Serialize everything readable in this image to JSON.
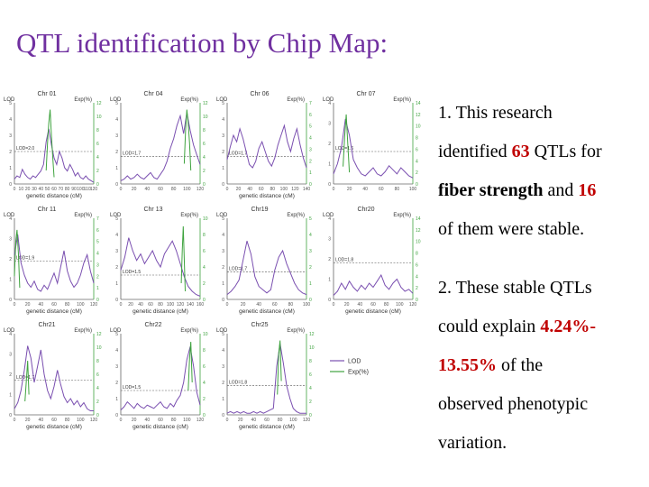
{
  "slide": {
    "title": "QTL identification by Chip Map:",
    "points": [
      {
        "lines": [
          [
            "1. This research"
          ],
          [
            "identified ",
            {
              "t": "63",
              "s": "num"
            },
            " QTLs for"
          ],
          [
            {
              "t": "fiber strength",
              "s": "bold"
            },
            " and  ",
            {
              "t": "16",
              "s": "num"
            }
          ],
          [
            "of them were  stable."
          ]
        ]
      },
      {
        "lines": [
          [
            " 2. These stable QTLs"
          ],
          [
            "could explain ",
            {
              "t": "4.24%-",
              "s": "num"
            }
          ],
          [
            {
              "t": "13.55%",
              "s": "num"
            },
            " of the"
          ],
          [
            "observed phenotypic"
          ],
          [
            "variation."
          ]
        ]
      }
    ]
  },
  "colors": {
    "title": "#7030a0",
    "accent": "#c00000",
    "lod_line": "#7a4fb0",
    "exp_line": "#3fa33f",
    "threshold": "#555555"
  },
  "legend": {
    "lod": "LOD",
    "exp": "Exp(%)"
  },
  "chart_data": [
    {
      "type": "line",
      "title": "Chr 01",
      "xlabel": "genetic distance (cM)",
      "left_label": "LOD",
      "right_label": "Exp(%)",
      "threshold_label": "LOD=2.0",
      "threshold": 2.0,
      "x_ticks": [
        "0",
        "10",
        "20",
        "30",
        "40",
        "50",
        "60",
        "70",
        "80",
        "90",
        "100",
        "110",
        "120"
      ],
      "y_ticks_left": [
        "0",
        "1",
        "2",
        "3",
        "4",
        "5"
      ],
      "y_ticks_right": [
        "0",
        "2",
        "4",
        "6",
        "8",
        "10",
        "12"
      ],
      "ylim_left": [
        0,
        5
      ],
      "ylim_right": [
        0,
        12
      ],
      "xlim": [
        0,
        120
      ],
      "lod": {
        "x": [
          0,
          4,
          8,
          12,
          16,
          20,
          24,
          28,
          32,
          36,
          40,
          44,
          48,
          52,
          56,
          60,
          64,
          68,
          72,
          76,
          80,
          84,
          88,
          92,
          96,
          100,
          104,
          108,
          112,
          116,
          120
        ],
        "y": [
          0.3,
          0.5,
          0.4,
          0.9,
          0.6,
          0.4,
          0.3,
          0.5,
          0.4,
          0.6,
          0.8,
          1.2,
          2.6,
          3.4,
          2.4,
          1.6,
          1.2,
          2.0,
          1.6,
          1.0,
          0.8,
          1.2,
          0.9,
          0.5,
          0.7,
          0.4,
          0.3,
          0.5,
          0.3,
          0.2,
          0.1
        ]
      },
      "exp": {
        "x": [
          48,
          50,
          52,
          54,
          56,
          58,
          60
        ],
        "y": [
          2,
          6,
          9,
          11,
          7,
          4,
          1
        ]
      }
    },
    {
      "type": "line",
      "title": "Chr 04",
      "xlabel": "",
      "left_label": "LOD",
      "right_label": "Exp(%)",
      "threshold_label": "LOD=1.7",
      "threshold": 1.7,
      "x_ticks": [
        "0",
        "20",
        "40",
        "60",
        "80",
        "100",
        "120"
      ],
      "y_ticks_left": [
        "0",
        "1",
        "2",
        "3",
        "4",
        "5"
      ],
      "y_ticks_right": [
        "0",
        "2",
        "4",
        "6",
        "8",
        "10",
        "12"
      ],
      "ylim_left": [
        0,
        5
      ],
      "ylim_right": [
        0,
        12
      ],
      "xlim": [
        0,
        120
      ],
      "lod": {
        "x": [
          0,
          5,
          10,
          15,
          20,
          25,
          30,
          35,
          40,
          45,
          50,
          55,
          60,
          65,
          70,
          75,
          80,
          85,
          90,
          95,
          100,
          105,
          110,
          115,
          120
        ],
        "y": [
          0.2,
          0.3,
          0.5,
          0.3,
          0.4,
          0.6,
          0.4,
          0.3,
          0.5,
          0.7,
          0.4,
          0.3,
          0.6,
          0.9,
          1.4,
          2.2,
          2.8,
          3.6,
          4.2,
          3.1,
          4.4,
          3.3,
          2.4,
          1.8,
          1.2
        ]
      },
      "exp": {
        "x": [
          96,
          98,
          100,
          102,
          104,
          106
        ],
        "y": [
          3,
          8,
          11,
          9,
          6,
          2
        ]
      }
    },
    {
      "type": "line",
      "title": "Chr 06",
      "xlabel": "genetic distance (cM)",
      "left_label": "LOD",
      "right_label": "Exp(%)",
      "threshold_label": "LOD=1.7",
      "threshold": 1.7,
      "x_ticks": [
        "0",
        "20",
        "40",
        "60",
        "80",
        "100",
        "120",
        "140"
      ],
      "y_ticks_left": [
        "0",
        "1",
        "2",
        "3",
        "4",
        "5"
      ],
      "y_ticks_right": [
        "0",
        "1",
        "2",
        "3",
        "4",
        "5",
        "6",
        "7"
      ],
      "ylim_left": [
        0,
        5
      ],
      "ylim_right": [
        0,
        7
      ],
      "xlim": [
        0,
        150
      ],
      "lod": {
        "x": [
          0,
          6,
          12,
          18,
          24,
          30,
          36,
          42,
          48,
          54,
          60,
          66,
          72,
          78,
          84,
          90,
          96,
          102,
          108,
          114,
          120,
          126,
          132,
          138,
          144,
          150
        ],
        "y": [
          1.5,
          2.3,
          3.0,
          2.6,
          3.4,
          2.8,
          2.0,
          1.2,
          1.0,
          1.4,
          2.2,
          2.6,
          2.0,
          1.4,
          1.1,
          1.6,
          2.4,
          3.0,
          3.6,
          2.6,
          2.0,
          2.8,
          3.4,
          2.4,
          1.6,
          1.0
        ]
      },
      "exp": {
        "x": [],
        "y": []
      }
    },
    {
      "type": "line",
      "title": "Chr 07",
      "xlabel": "",
      "left_label": "LOD",
      "right_label": "Exp(%)",
      "threshold_label": "LOD=1.6",
      "threshold": 1.6,
      "x_ticks": [
        "0",
        "20",
        "40",
        "60",
        "80",
        "100"
      ],
      "y_ticks_left": [
        "0",
        "1",
        "2",
        "3",
        "4"
      ],
      "y_ticks_right": [
        "0",
        "2",
        "4",
        "6",
        "8",
        "10",
        "12",
        "14"
      ],
      "ylim_left": [
        0,
        4
      ],
      "ylim_right": [
        0,
        14
      ],
      "xlim": [
        0,
        100
      ],
      "lod": {
        "x": [
          0,
          5,
          10,
          15,
          20,
          25,
          30,
          35,
          40,
          45,
          50,
          55,
          60,
          65,
          70,
          75,
          80,
          85,
          90,
          95,
          100
        ],
        "y": [
          0.5,
          1.0,
          1.8,
          3.2,
          2.4,
          1.2,
          0.8,
          0.5,
          0.4,
          0.6,
          0.8,
          0.5,
          0.4,
          0.6,
          0.9,
          0.7,
          0.5,
          0.8,
          0.6,
          0.4,
          0.3
        ]
      },
      "exp": {
        "x": [
          12,
          14,
          16,
          18,
          20
        ],
        "y": [
          3,
          8,
          12,
          7,
          2
        ]
      }
    },
    {
      "type": "line",
      "title": "Chr 11",
      "xlabel": "genetic distance (cM)",
      "left_label": "LOD",
      "right_label": "Exp(%)",
      "threshold_label": "LOD=1.9",
      "threshold": 1.9,
      "x_ticks": [
        "0",
        "20",
        "40",
        "60",
        "80",
        "100",
        "120"
      ],
      "y_ticks_left": [
        "0",
        "1",
        "2",
        "3",
        "4"
      ],
      "y_ticks_right": [
        "0",
        "1",
        "2",
        "3",
        "4",
        "5",
        "6",
        "7"
      ],
      "ylim_left": [
        0,
        4
      ],
      "ylim_right": [
        0,
        7
      ],
      "xlim": [
        0,
        120
      ],
      "lod": {
        "x": [
          0,
          5,
          10,
          15,
          20,
          25,
          30,
          35,
          40,
          45,
          50,
          55,
          60,
          65,
          70,
          75,
          80,
          85,
          90,
          95,
          100,
          105,
          110,
          115,
          120
        ],
        "y": [
          2.2,
          3.2,
          1.8,
          1.2,
          0.8,
          0.6,
          0.9,
          0.5,
          0.4,
          0.7,
          0.5,
          0.9,
          1.3,
          0.8,
          1.6,
          2.4,
          1.4,
          0.9,
          0.6,
          0.8,
          1.2,
          1.8,
          2.2,
          1.4,
          0.8
        ]
      },
      "exp": {
        "x": [
          0,
          2,
          4,
          6,
          8
        ],
        "y": [
          2,
          5,
          6,
          4,
          1
        ]
      }
    },
    {
      "type": "line",
      "title": "Chr 13",
      "xlabel": "genetic distance (cM)",
      "left_label": "LOD",
      "right_label": "Exp(%)",
      "threshold_label": "LOD=1.5",
      "threshold": 1.5,
      "x_ticks": [
        "0",
        "20",
        "40",
        "60",
        "80",
        "100",
        "120",
        "140",
        "160"
      ],
      "y_ticks_left": [
        "0",
        "1",
        "2",
        "3",
        "4",
        "5"
      ],
      "y_ticks_right": [
        "0",
        "2",
        "4",
        "6",
        "8",
        "10"
      ],
      "ylim_left": [
        0,
        5
      ],
      "ylim_right": [
        0,
        10
      ],
      "xlim": [
        0,
        160
      ],
      "lod": {
        "x": [
          0,
          8,
          16,
          24,
          32,
          40,
          48,
          56,
          64,
          72,
          80,
          88,
          96,
          104,
          112,
          120,
          128,
          136,
          144,
          152,
          160
        ],
        "y": [
          1.8,
          2.6,
          3.8,
          3.0,
          2.4,
          2.8,
          2.2,
          2.6,
          3.0,
          2.4,
          2.0,
          2.8,
          3.2,
          3.6,
          3.0,
          2.2,
          1.4,
          0.8,
          0.5,
          0.3,
          0.2
        ]
      },
      "exp": {
        "x": [
          122,
          124,
          126,
          128,
          130
        ],
        "y": [
          2,
          6,
          9,
          5,
          1
        ]
      }
    },
    {
      "type": "line",
      "title": "Chr19",
      "xlabel": "genetic distance (cM)",
      "left_label": "LOD",
      "right_label": "Exp(%)",
      "threshold_label": "LOD=1.7",
      "threshold": 1.7,
      "x_ticks": [
        "0",
        "20",
        "40",
        "60",
        "80",
        "100"
      ],
      "y_ticks_left": [
        "0",
        "1",
        "2",
        "3",
        "4",
        "5"
      ],
      "y_ticks_right": [
        "0",
        "1",
        "2",
        "3",
        "4",
        "5"
      ],
      "ylim_left": [
        0,
        5
      ],
      "ylim_right": [
        0,
        5
      ],
      "xlim": [
        0,
        100
      ],
      "lod": {
        "x": [
          0,
          5,
          10,
          15,
          20,
          25,
          30,
          35,
          40,
          45,
          50,
          55,
          60,
          65,
          70,
          75,
          80,
          85,
          90,
          95,
          100
        ],
        "y": [
          0.3,
          0.5,
          0.8,
          1.2,
          2.4,
          3.6,
          2.8,
          1.4,
          0.8,
          0.6,
          0.4,
          0.6,
          1.8,
          2.6,
          3.0,
          2.2,
          1.6,
          1.0,
          0.6,
          0.4,
          0.3
        ]
      },
      "exp": {
        "x": [],
        "y": []
      }
    },
    {
      "type": "line",
      "title": "Chr20",
      "xlabel": "genetic distance (cM)",
      "left_label": "LOD",
      "right_label": "Exp(%)",
      "threshold_label": "LOD=1.8",
      "threshold": 1.8,
      "x_ticks": [
        "0",
        "20",
        "40",
        "60",
        "80",
        "100",
        "120"
      ],
      "y_ticks_left": [
        "0",
        "1",
        "2",
        "3",
        "4"
      ],
      "y_ticks_right": [
        "0",
        "2",
        "4",
        "6",
        "8",
        "10",
        "12",
        "14"
      ],
      "ylim_left": [
        0,
        4
      ],
      "ylim_right": [
        0,
        14
      ],
      "xlim": [
        0,
        120
      ],
      "lod": {
        "x": [
          0,
          6,
          12,
          18,
          24,
          30,
          36,
          42,
          48,
          54,
          60,
          66,
          72,
          78,
          84,
          90,
          96,
          102,
          108,
          114,
          120
        ],
        "y": [
          0.2,
          0.4,
          0.8,
          0.5,
          0.9,
          0.6,
          0.4,
          0.7,
          0.5,
          0.8,
          0.6,
          0.9,
          1.2,
          0.7,
          0.5,
          0.8,
          1.0,
          0.6,
          0.4,
          0.5,
          0.3
        ]
      },
      "exp": {
        "x": [],
        "y": []
      }
    },
    {
      "type": "line",
      "title": "Chr21",
      "xlabel": "genetic distance (cM)",
      "left_label": "LOD",
      "right_label": "Exp(%)",
      "threshold_label": "LOD=1.7",
      "threshold": 1.7,
      "x_ticks": [
        "0",
        "20",
        "40",
        "60",
        "80",
        "100",
        "120"
      ],
      "y_ticks_left": [
        "0",
        "1",
        "2",
        "3",
        "4"
      ],
      "y_ticks_right": [
        "0",
        "2",
        "4",
        "6",
        "8",
        "10",
        "12"
      ],
      "ylim_left": [
        0,
        4
      ],
      "ylim_right": [
        0,
        12
      ],
      "xlim": [
        0,
        120
      ],
      "lod": {
        "x": [
          0,
          5,
          10,
          15,
          20,
          25,
          30,
          35,
          40,
          45,
          50,
          55,
          60,
          65,
          70,
          75,
          80,
          85,
          90,
          95,
          100,
          105,
          110,
          115,
          120
        ],
        "y": [
          0.3,
          0.6,
          1.2,
          2.2,
          3.4,
          2.8,
          1.6,
          2.4,
          3.2,
          2.0,
          1.2,
          0.8,
          1.4,
          2.2,
          1.5,
          0.9,
          0.6,
          0.8,
          0.5,
          0.7,
          0.4,
          0.6,
          0.3,
          0.2,
          0.2
        ]
      },
      "exp": {
        "x": [
          16,
          18,
          20,
          22
        ],
        "y": [
          2,
          5,
          8,
          3
        ]
      }
    },
    {
      "type": "line",
      "title": "Chr22",
      "xlabel": "genetic distance (cM)",
      "left_label": "LOD",
      "right_label": "Exp(%)",
      "threshold_label": "LOD=1.5",
      "threshold": 1.5,
      "x_ticks": [
        "0",
        "20",
        "40",
        "60",
        "80",
        "100",
        "120"
      ],
      "y_ticks_left": [
        "0",
        "1",
        "2",
        "3",
        "4",
        "5"
      ],
      "y_ticks_right": [
        "0",
        "2",
        "4",
        "6",
        "8",
        "10"
      ],
      "ylim_left": [
        0,
        5
      ],
      "ylim_right": [
        0,
        10
      ],
      "xlim": [
        0,
        120
      ],
      "lod": {
        "x": [
          0,
          5,
          10,
          15,
          20,
          25,
          30,
          35,
          40,
          45,
          50,
          55,
          60,
          65,
          70,
          75,
          80,
          85,
          90,
          95,
          100,
          105,
          110,
          115,
          120
        ],
        "y": [
          0.3,
          0.5,
          0.8,
          0.6,
          0.4,
          0.7,
          0.5,
          0.4,
          0.6,
          0.5,
          0.4,
          0.6,
          0.8,
          0.5,
          0.4,
          0.7,
          0.5,
          0.9,
          1.2,
          2.0,
          3.4,
          4.2,
          3.0,
          1.4,
          0.6
        ]
      },
      "exp": {
        "x": [
          102,
          104,
          106,
          108
        ],
        "y": [
          3,
          7,
          9,
          4
        ]
      }
    },
    {
      "type": "line",
      "title": "Chr25",
      "xlabel": "genetic distance (cM)",
      "left_label": "LOD",
      "right_label": "Exp(%)",
      "threshold_label": "LOD=1.8",
      "threshold": 1.8,
      "x_ticks": [
        "0",
        "20",
        "40",
        "60",
        "80",
        "100",
        "120"
      ],
      "y_ticks_left": [
        "0",
        "1",
        "2",
        "3",
        "4",
        "5"
      ],
      "y_ticks_right": [
        "0",
        "2",
        "4",
        "6",
        "8",
        "10",
        "12"
      ],
      "ylim_left": [
        0,
        5
      ],
      "ylim_right": [
        0,
        12
      ],
      "xlim": [
        0,
        120
      ],
      "lod": {
        "x": [
          0,
          5,
          10,
          15,
          20,
          25,
          30,
          35,
          40,
          45,
          50,
          55,
          60,
          65,
          70,
          75,
          80,
          85,
          90,
          95,
          100,
          105,
          110,
          115,
          120
        ],
        "y": [
          0.1,
          0.2,
          0.1,
          0.2,
          0.1,
          0.2,
          0.1,
          0.1,
          0.2,
          0.1,
          0.2,
          0.1,
          0.2,
          0.3,
          0.4,
          3.0,
          4.4,
          3.2,
          1.8,
          1.0,
          0.4,
          0.2,
          0.1,
          0.1,
          0.1
        ]
      },
      "exp": {
        "x": [
          76,
          78,
          80,
          82
        ],
        "y": [
          3,
          9,
          11,
          5
        ]
      }
    }
  ]
}
